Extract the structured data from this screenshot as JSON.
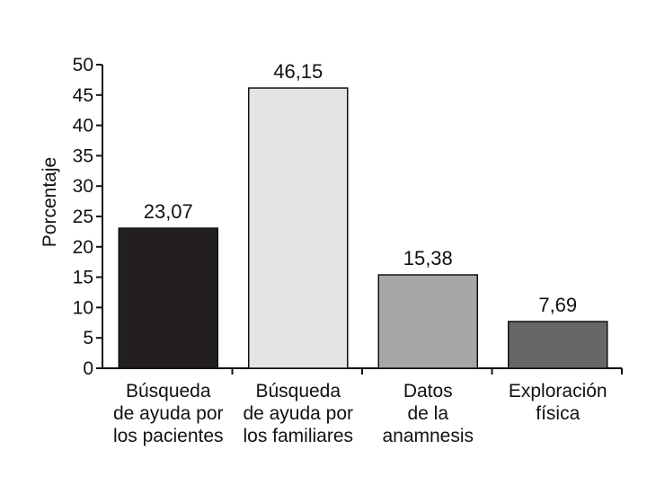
{
  "chart_data": {
    "type": "bar",
    "ylabel": "Porcentaje",
    "xlabel": "",
    "ylim": [
      0,
      50
    ],
    "yticks": [
      "0",
      "5",
      "10",
      "15",
      "20",
      "25",
      "30",
      "35",
      "40",
      "45",
      "50"
    ],
    "grid": false,
    "categories": [
      [
        "Búsqueda",
        "de ayuda por",
        "los pacientes"
      ],
      [
        "Búsqueda",
        "de ayuda por",
        "los familiares"
      ],
      [
        "Datos",
        "de la",
        "anamnesis"
      ],
      [
        "Exploración",
        "física"
      ]
    ],
    "values": [
      23.07,
      46.15,
      15.38,
      7.69
    ],
    "value_labels": [
      "23,07",
      "46,15",
      "15,38",
      "7,69"
    ],
    "colors": [
      "#231f20",
      "#e4e4e4",
      "#a7a7a7",
      "#67676a"
    ]
  }
}
